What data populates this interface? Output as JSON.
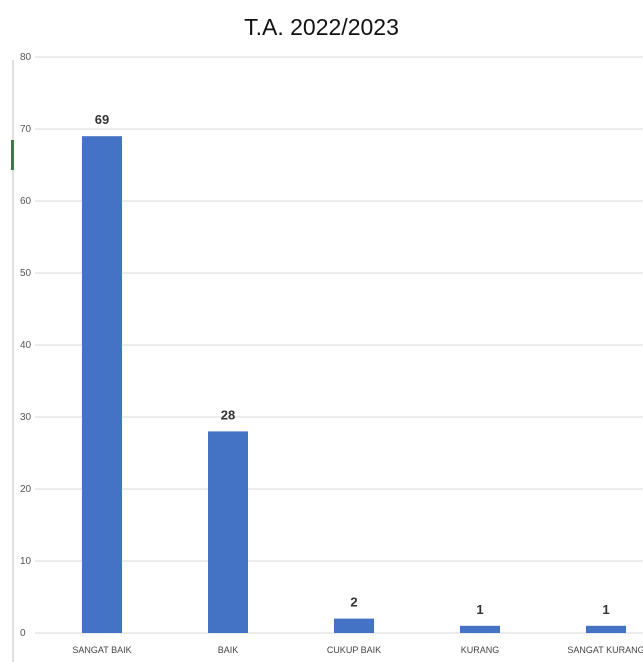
{
  "chart_data": {
    "type": "bar",
    "title": "T.A. 2022/2023",
    "xlabel": "",
    "ylabel": "",
    "categories": [
      "SANGAT BAIK",
      "BAIK",
      "CUKUP BAIK",
      "KURANG",
      "SANGAT KURANG"
    ],
    "values": [
      69,
      28,
      2,
      1,
      1
    ],
    "data_labels": [
      "69",
      "28",
      "2",
      "1",
      "1"
    ],
    "ylim": [
      0,
      80
    ],
    "yticks": [
      0,
      10,
      20,
      30,
      40,
      50,
      60,
      70,
      80
    ],
    "ytick_labels": [
      "0",
      "10",
      "20",
      "30",
      "40",
      "50",
      "60",
      "70",
      "80"
    ],
    "grid": true,
    "legend": "none",
    "bar_color": "#4472C4",
    "grid_color": "#d9d9d9"
  }
}
